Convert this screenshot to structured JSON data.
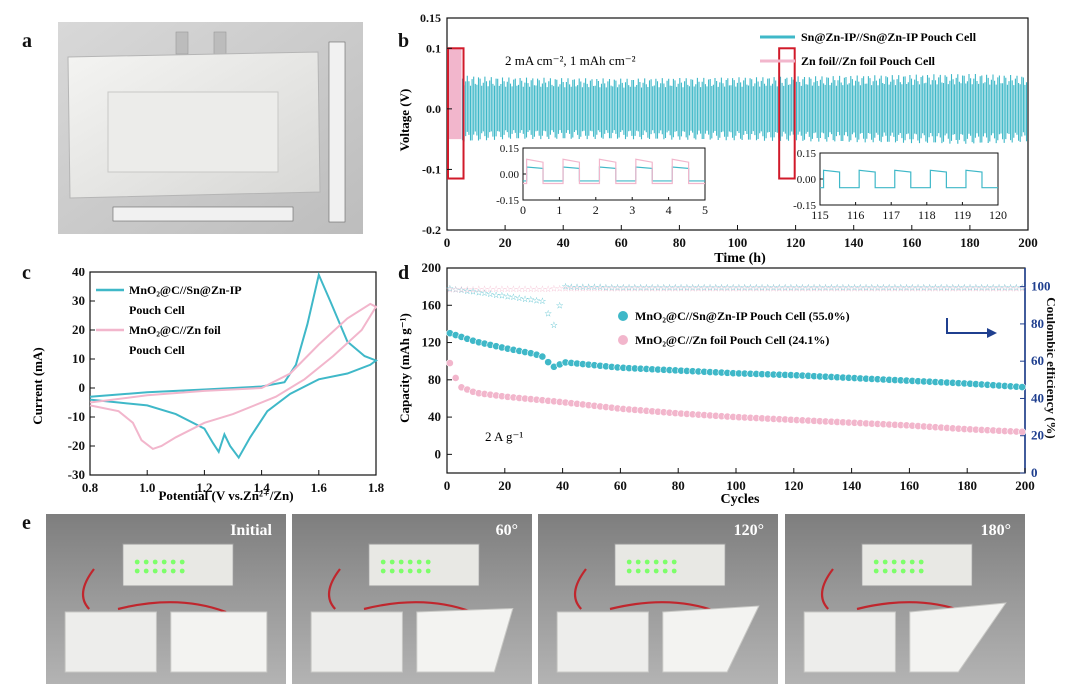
{
  "panels": {
    "a": {
      "letter": "a"
    },
    "b": {
      "letter": "b"
    },
    "c": {
      "letter": "c"
    },
    "d": {
      "letter": "d"
    },
    "e": {
      "letter": "e",
      "photo_labels": [
        "Initial",
        "60°",
        "120°",
        "180°"
      ]
    }
  },
  "colors": {
    "teal": "#3fb8c8",
    "pink": "#f2b6cc",
    "red": "#d11a2a",
    "navy": "#1f3f8f"
  },
  "chart_data": [
    {
      "id": "b",
      "type": "line",
      "title": "",
      "xlabel": "Time (h)",
      "ylabel": "Voltage (V)",
      "xlim": [
        0,
        200
      ],
      "ylim": [
        -0.2,
        0.15
      ],
      "xticks": [
        "0",
        "20",
        "40",
        "60",
        "80",
        "100",
        "120",
        "140",
        "160",
        "180",
        "200"
      ],
      "yticks": [
        "0.15",
        "0.1",
        "0.0",
        "-0.1",
        "-0.2"
      ],
      "annotation": "2 mA cm⁻², 1 mAh cm⁻²",
      "series": [
        {
          "name": "Sn@Zn-IP//Sn@Zn-IP Pouch Cell",
          "color": "#3fb8c8",
          "envelope": {
            "t": [
              0,
              5,
              20,
              60,
              100,
              140,
              180,
              200
            ],
            "upper": [
              0.042,
              0.055,
              0.052,
              0.05,
              0.052,
              0.055,
              0.058,
              0.055
            ],
            "lower": [
              -0.04,
              -0.055,
              -0.05,
              -0.05,
              -0.052,
              -0.055,
              -0.058,
              -0.055
            ]
          }
        },
        {
          "name": "Zn foil//Zn foil Pouch Cell",
          "color": "#f2b6cc",
          "envelope": {
            "t": [
              0,
              5
            ],
            "upper": [
              0.1,
              0.1
            ],
            "lower": [
              -0.05,
              -0.06
            ]
          }
        }
      ],
      "highlight_boxes_h": [
        [
          0,
          5
        ],
        [
          114,
          119
        ]
      ],
      "insets": [
        {
          "xlim": [
            0,
            5
          ],
          "ylim": [
            -0.15,
            0.15
          ],
          "xticks": [
            "0",
            "1",
            "2",
            "3",
            "4",
            "5"
          ],
          "yticks": [
            "0.15",
            "0.00",
            "-0.15"
          ],
          "series": [
            {
              "name": "Sn@Zn-IP",
              "color": "#3fb8c8",
              "low": -0.04,
              "high": 0.04,
              "period": 1
            },
            {
              "name": "Zn foil",
              "color": "#f2b6cc",
              "low": -0.055,
              "high": 0.085,
              "period": 1
            }
          ]
        },
        {
          "xlim": [
            115,
            120
          ],
          "ylim": [
            -0.15,
            0.15
          ],
          "xticks": [
            "115",
            "116",
            "117",
            "118",
            "119",
            "120"
          ],
          "yticks": [
            "0.15",
            "0.00",
            "-0.15"
          ],
          "series": [
            {
              "name": "Sn@Zn-IP",
              "color": "#3fb8c8",
              "low": -0.05,
              "high": 0.05,
              "period": 1
            }
          ]
        }
      ]
    },
    {
      "id": "c",
      "type": "line",
      "title": "",
      "xlabel": "Potential (V vs.Zn²⁺/Zn)",
      "ylabel": "Current (mA)",
      "xlim": [
        0.8,
        1.8
      ],
      "ylim": [
        -30,
        40
      ],
      "xticks": [
        "0.8",
        "1.0",
        "1.2",
        "1.4",
        "1.6",
        "1.8"
      ],
      "yticks": [
        "40",
        "30",
        "20",
        "10",
        "0",
        "-10",
        "-20",
        "-30"
      ],
      "series": [
        {
          "name": "MnO₂@C//Sn@Zn-IP Pouch Cell",
          "legend_lines": [
            "MnO₂@C//Sn@Zn-IP",
            "Pouch Cell"
          ],
          "color": "#3fb8c8",
          "x": [
            0.8,
            1.0,
            1.2,
            1.4,
            1.48,
            1.52,
            1.56,
            1.6,
            1.64,
            1.7,
            1.76,
            1.8,
            1.78,
            1.7,
            1.6,
            1.5,
            1.42,
            1.36,
            1.32,
            1.29,
            1.27,
            1.25,
            1.23,
            1.2,
            1.1,
            1.0,
            0.9,
            0.8
          ],
          "y": [
            -3,
            -1.5,
            -0.5,
            0.5,
            2,
            8,
            22,
            39,
            30,
            16,
            11,
            9.5,
            8,
            5,
            3,
            -2,
            -8,
            -17,
            -24,
            -20,
            -16,
            -22,
            -19,
            -14,
            -9,
            -6,
            -5,
            -4
          ]
        },
        {
          "name": "MnO₂@C//Zn foil Pouch Cell",
          "legend_lines": [
            "MnO₂@C//Zn foil",
            "Pouch Cell"
          ],
          "color": "#f2b6cc",
          "x": [
            0.8,
            1.0,
            1.2,
            1.4,
            1.5,
            1.6,
            1.7,
            1.78,
            1.8,
            1.75,
            1.65,
            1.55,
            1.45,
            1.3,
            1.2,
            1.1,
            1.05,
            1.02,
            0.98,
            0.95,
            0.9,
            0.8
          ],
          "y": [
            -5,
            -2.5,
            -1,
            0,
            5,
            15,
            24,
            29,
            28,
            20,
            11,
            3,
            -3,
            -9,
            -12,
            -17,
            -20,
            -21,
            -18,
            -12,
            -8,
            -6
          ]
        }
      ]
    },
    {
      "id": "d",
      "type": "scatter",
      "title": "",
      "xlabel": "Cycles",
      "ylabel": "Capacity (mAh g⁻¹)",
      "y2label": "Coulombic efficiency (%)",
      "xlim": [
        0,
        200
      ],
      "ylim": [
        -20,
        200
      ],
      "y2lim": [
        0,
        110
      ],
      "xticks": [
        "0",
        "20",
        "40",
        "60",
        "80",
        "100",
        "120",
        "140",
        "160",
        "180",
        "200"
      ],
      "yticks": [
        "200",
        "160",
        "120",
        "80",
        "40",
        "0"
      ],
      "y2ticks": [
        "100",
        "80",
        "60",
        "40",
        "20",
        "0"
      ],
      "annotation": "2 A g⁻¹",
      "series": [
        {
          "name": "MnO₂@C//Sn@Zn-IP Pouch Cell (55.0%)",
          "color": "#3fb8c8",
          "axis": "left",
          "x": [
            1,
            10,
            20,
            30,
            34,
            36,
            38,
            40,
            60,
            80,
            100,
            120,
            140,
            160,
            180,
            200
          ],
          "y": [
            130,
            121,
            114,
            108,
            104,
            94,
            94,
            99,
            93,
            90,
            87,
            85,
            82,
            79,
            76,
            72
          ]
        },
        {
          "name": "MnO₂@C//Zn foil Pouch Cell (24.1%)",
          "color": "#f2b6cc",
          "axis": "left",
          "x": [
            1,
            3,
            5,
            10,
            20,
            40,
            60,
            80,
            100,
            120,
            140,
            160,
            180,
            200
          ],
          "y": [
            98,
            82,
            72,
            66,
            62,
            56,
            49,
            44,
            40,
            37,
            34,
            31,
            27,
            24
          ]
        },
        {
          "name": "Sn@Zn-IP CE",
          "color": "#3fb8c8",
          "axis": "right",
          "marker": "star",
          "x": [
            1,
            34,
            36,
            38,
            40,
            60,
            100,
            150,
            200
          ],
          "y": [
            99,
            92,
            79,
            80,
            100,
            99.5,
            99.6,
            99.5,
            99.5
          ]
        },
        {
          "name": "Zn foil CE",
          "color": "#f2b6cc",
          "axis": "right",
          "marker": "star",
          "x": [
            1,
            50,
            100,
            150,
            200
          ],
          "y": [
            98.5,
            99,
            99,
            99,
            99
          ]
        }
      ]
    }
  ]
}
